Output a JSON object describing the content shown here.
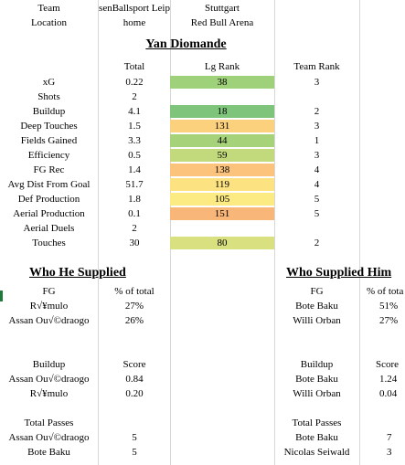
{
  "header": {
    "team_label": "Team",
    "location_label": "Location",
    "home_team": "senBallsport Leip",
    "away_team": "Stuttgart",
    "home_location": "home",
    "away_location": "Red Bull Arena"
  },
  "player_name": "Yan Diomande",
  "stat_columns": {
    "total": "Total",
    "lg_rank": "Lg Rank",
    "team_rank": "Team Rank"
  },
  "stats": [
    {
      "label": "xG",
      "total": "0.22",
      "lg_rank": "38",
      "team_rank": "3",
      "color": "#9fd07a"
    },
    {
      "label": "Shots",
      "total": "2",
      "lg_rank": "",
      "team_rank": "",
      "color": ""
    },
    {
      "label": "Buildup",
      "total": "4.1",
      "lg_rank": "18",
      "team_rank": "2",
      "color": "#7ec47a"
    },
    {
      "label": "Deep Touches",
      "total": "1.5",
      "lg_rank": "131",
      "team_rank": "3",
      "color": "#fcd17e"
    },
    {
      "label": "Fields Gained",
      "total": "3.3",
      "lg_rank": "44",
      "team_rank": "1",
      "color": "#a6d27a"
    },
    {
      "label": "Efficiency",
      "total": "0.5",
      "lg_rank": "59",
      "team_rank": "3",
      "color": "#c2da7c"
    },
    {
      "label": "FG Rec",
      "total": "1.4",
      "lg_rank": "138",
      "team_rank": "4",
      "color": "#fbc37c"
    },
    {
      "label": "Avg Dist From Goal",
      "total": "51.7",
      "lg_rank": "119",
      "team_rank": "4",
      "color": "#fde282"
    },
    {
      "label": "Def Production",
      "total": "1.8",
      "lg_rank": "105",
      "team_rank": "5",
      "color": "#fcea83"
    },
    {
      "label": "Aerial Production",
      "total": "0.1",
      "lg_rank": "151",
      "team_rank": "5",
      "color": "#f8b679"
    },
    {
      "label": "Aerial Duels",
      "total": "2",
      "lg_rank": "",
      "team_rank": "",
      "color": ""
    },
    {
      "label": "Touches",
      "total": "30",
      "lg_rank": "80",
      "team_rank": "2",
      "color": "#d8e07f"
    }
  ],
  "supplied": {
    "title": "Who He Supplied",
    "fg_header": "FG",
    "fg_value_header": "% of total",
    "fg_rows": [
      {
        "name": "R√¥mulo",
        "value": "27%"
      },
      {
        "name": "Assan Ou√©draogo",
        "value": "26%"
      }
    ],
    "buildup_header": "Buildup",
    "buildup_value_header": "Score",
    "buildup_rows": [
      {
        "name": "Assan Ou√©draogo",
        "value": "0.84"
      },
      {
        "name": "R√¥mulo",
        "value": "0.20"
      }
    ],
    "passes_header": "Total Passes",
    "passes_rows": [
      {
        "name": "Assan Ou√©draogo",
        "value": "5"
      },
      {
        "name": "Bote Baku",
        "value": "5"
      }
    ]
  },
  "supplied_him": {
    "title": "Who Supplied Him",
    "fg_header": "FG",
    "fg_value_header": "% of tota",
    "fg_rows": [
      {
        "name": "Bote Baku",
        "value": "51%"
      },
      {
        "name": "Willi Orban",
        "value": "27%"
      }
    ],
    "buildup_header": "Buildup",
    "buildup_value_header": "Score",
    "buildup_rows": [
      {
        "name": "Bote Baku",
        "value": "1.24"
      },
      {
        "name": "Willi Orban",
        "value": "0.04"
      }
    ],
    "passes_header": "Total Passes",
    "passes_rows": [
      {
        "name": "Bote Baku",
        "value": "7"
      },
      {
        "name": "Nicolas Seiwald",
        "value": "3"
      }
    ]
  }
}
